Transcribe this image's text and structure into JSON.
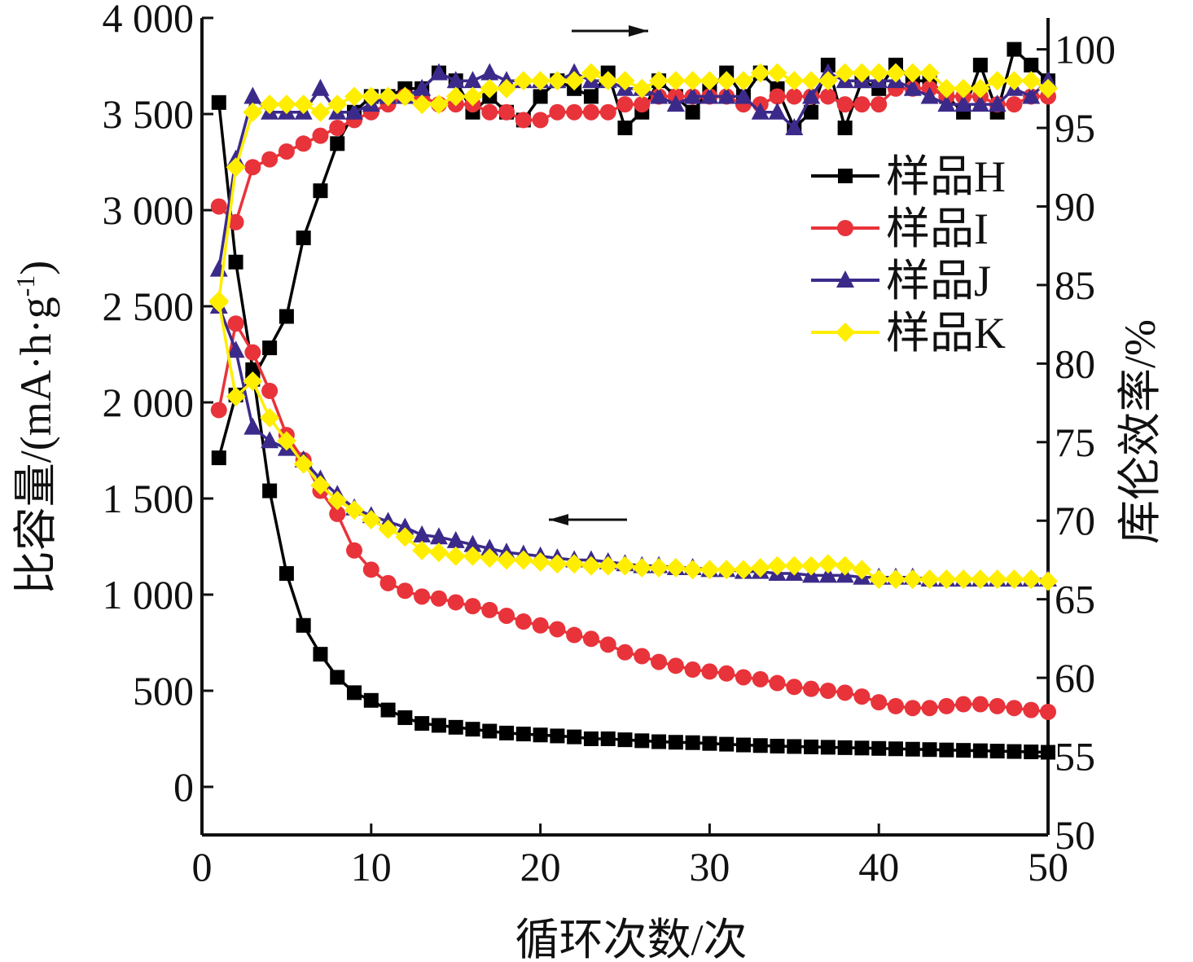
{
  "chart_data": {
    "type": "line",
    "xlabel": "循环次数/次",
    "ylabel_left": "比容量/(mA·h·g",
    "ylabel_left_sup": "-1",
    "ylabel_left_close": ")",
    "ylabel_right": "库伦效率/%",
    "xlim": [
      0,
      50
    ],
    "ylim_left": [
      -250,
      4000
    ],
    "ylim_right": [
      50,
      102
    ],
    "x_ticks": [
      "0",
      "10",
      "20",
      "30",
      "40",
      "50"
    ],
    "x_tick_values": [
      0,
      10,
      20,
      30,
      40,
      50
    ],
    "y_left_ticks": [
      "0",
      "500",
      "1 000",
      "1 500",
      "2 000",
      "2 500",
      "3 000",
      "3 500",
      "4 000"
    ],
    "y_left_tick_values": [
      0,
      500,
      1000,
      1500,
      2000,
      2500,
      3000,
      3500,
      4000
    ],
    "y_right_ticks": [
      "50",
      "55",
      "60",
      "65",
      "70",
      "75",
      "80",
      "85",
      "90",
      "95",
      "100"
    ],
    "y_right_tick_values": [
      50,
      55,
      60,
      65,
      70,
      75,
      80,
      85,
      90,
      95,
      100
    ],
    "legend_position": "upper-right",
    "annotations": [
      {
        "type": "arrow",
        "direction": "right",
        "meaning": "coulombic efficiency (right axis)"
      },
      {
        "type": "arrow",
        "direction": "left",
        "meaning": "specific capacity (left axis)"
      }
    ],
    "series": [
      {
        "name": "样品H",
        "color": "#000000",
        "marker": "square",
        "x": [
          1,
          2,
          3,
          4,
          5,
          6,
          7,
          8,
          9,
          10,
          11,
          12,
          13,
          14,
          15,
          16,
          17,
          18,
          19,
          20,
          21,
          22,
          23,
          24,
          25,
          26,
          27,
          28,
          29,
          30,
          31,
          32,
          33,
          34,
          35,
          36,
          37,
          38,
          39,
          40,
          41,
          42,
          43,
          44,
          45,
          46,
          47,
          48,
          49,
          50
        ],
        "capacity": [
          3560,
          2730,
          2170,
          1540,
          1110,
          840,
          690,
          570,
          490,
          450,
          400,
          360,
          330,
          320,
          310,
          300,
          290,
          280,
          275,
          270,
          265,
          260,
          250,
          250,
          245,
          240,
          235,
          232,
          230,
          226,
          222,
          218,
          215,
          212,
          210,
          208,
          206,
          204,
          202,
          200,
          198,
          196,
          194,
          192,
          190,
          188,
          186,
          184,
          182,
          180
        ],
        "efficiency": [
          74,
          78,
          79,
          81,
          83,
          88,
          91,
          94,
          96,
          97,
          97,
          97.5,
          97.5,
          98.5,
          98,
          96,
          97,
          96,
          95.5,
          97,
          98,
          97.5,
          97,
          98.5,
          95,
          96,
          98,
          97,
          96,
          97.5,
          98.5,
          97,
          98.5,
          97.5,
          95,
          96,
          99,
          95,
          98,
          97.5,
          99,
          98,
          98,
          97,
          96,
          99,
          96,
          100,
          99,
          98
        ]
      },
      {
        "name": "样品I",
        "color": "#e8333a",
        "marker": "circle",
        "x": [
          1,
          2,
          3,
          4,
          5,
          6,
          7,
          8,
          9,
          10,
          11,
          12,
          13,
          14,
          15,
          16,
          17,
          18,
          19,
          20,
          21,
          22,
          23,
          24,
          25,
          26,
          27,
          28,
          29,
          30,
          31,
          32,
          33,
          34,
          35,
          36,
          37,
          38,
          39,
          40,
          41,
          42,
          43,
          44,
          45,
          46,
          47,
          48,
          49,
          50
        ],
        "capacity": [
          1960,
          2410,
          2260,
          2060,
          1830,
          1700,
          1540,
          1420,
          1230,
          1130,
          1060,
          1020,
          990,
          980,
          960,
          940,
          920,
          890,
          860,
          840,
          820,
          790,
          770,
          740,
          700,
          680,
          650,
          630,
          610,
          600,
          590,
          570,
          560,
          540,
          520,
          510,
          500,
          490,
          470,
          440,
          420,
          410,
          410,
          420,
          430,
          430,
          420,
          410,
          400,
          390
        ],
        "efficiency": [
          90,
          89,
          92.5,
          93,
          93.5,
          94,
          94.5,
          95,
          95.5,
          96,
          96.5,
          97,
          97,
          96.5,
          96.5,
          96.5,
          96,
          96,
          95.5,
          95.5,
          96,
          96,
          96,
          96,
          96.5,
          96.5,
          97,
          97,
          97,
          97,
          97,
          96.5,
          96.5,
          97,
          97,
          97,
          97,
          96.5,
          96.5,
          96.5,
          97.5,
          97.5,
          97.5,
          97,
          97,
          97,
          96.5,
          96.5,
          97,
          97
        ]
      },
      {
        "name": "样品J",
        "color": "#3c2a8a",
        "marker": "triangle",
        "x": [
          1,
          2,
          3,
          4,
          5,
          6,
          7,
          8,
          9,
          10,
          11,
          12,
          13,
          14,
          15,
          16,
          17,
          18,
          19,
          20,
          21,
          22,
          23,
          24,
          25,
          26,
          27,
          28,
          29,
          30,
          31,
          32,
          33,
          34,
          35,
          36,
          37,
          38,
          39,
          40,
          41,
          42,
          43,
          44,
          45,
          46,
          47,
          48,
          49,
          50
        ],
        "capacity": [
          2500,
          2270,
          1870,
          1800,
          1760,
          1700,
          1600,
          1520,
          1450,
          1410,
          1380,
          1350,
          1310,
          1300,
          1280,
          1260,
          1240,
          1220,
          1210,
          1200,
          1190,
          1180,
          1180,
          1170,
          1160,
          1150,
          1150,
          1140,
          1140,
          1130,
          1130,
          1120,
          1120,
          1110,
          1110,
          1100,
          1100,
          1100,
          1090,
          1090,
          1090,
          1090,
          1080,
          1080,
          1080,
          1080,
          1080,
          1080,
          1080,
          1080
        ],
        "efficiency": [
          86,
          93,
          97,
          96,
          96,
          96,
          97.5,
          96,
          96,
          96.5,
          97,
          97,
          97.5,
          98.5,
          98,
          98,
          98.5,
          98,
          98,
          98,
          98,
          98.5,
          98,
          98,
          97.5,
          97.5,
          97,
          96.5,
          97,
          97,
          97,
          97,
          96,
          96,
          95,
          97,
          98.5,
          98,
          98,
          98,
          98,
          97.5,
          97,
          96.5,
          96.5,
          96.5,
          96.5,
          97.5,
          97,
          98
        ]
      },
      {
        "name": "样品K",
        "color": "#ffee00",
        "marker": "diamond",
        "x": [
          1,
          2,
          3,
          4,
          5,
          6,
          7,
          8,
          9,
          10,
          11,
          12,
          13,
          14,
          15,
          16,
          17,
          18,
          19,
          20,
          21,
          22,
          23,
          24,
          25,
          26,
          27,
          28,
          29,
          30,
          31,
          32,
          33,
          34,
          35,
          36,
          37,
          38,
          39,
          40,
          41,
          42,
          43,
          44,
          45,
          46,
          47,
          48,
          49,
          50
        ],
        "capacity": [
          2520,
          2030,
          2110,
          1920,
          1800,
          1680,
          1570,
          1490,
          1440,
          1390,
          1340,
          1300,
          1230,
          1220,
          1200,
          1200,
          1190,
          1180,
          1180,
          1170,
          1160,
          1160,
          1150,
          1150,
          1150,
          1140,
          1140,
          1140,
          1130,
          1130,
          1130,
          1130,
          1140,
          1150,
          1150,
          1150,
          1160,
          1150,
          1130,
          1080,
          1080,
          1080,
          1080,
          1080,
          1080,
          1080,
          1080,
          1080,
          1080,
          1070
        ],
        "efficiency": [
          84,
          92.5,
          96,
          96.5,
          96.5,
          96.5,
          96,
          96.5,
          97,
          97,
          97,
          97,
          96.5,
          96.5,
          97,
          97,
          97.5,
          97.5,
          98,
          98,
          98,
          98,
          98.5,
          98,
          98,
          97.5,
          98,
          98,
          98,
          98,
          98,
          98,
          98.5,
          98.5,
          98,
          98,
          98,
          98.5,
          98.5,
          98.5,
          98.5,
          98.5,
          98.5,
          97.5,
          97.5,
          97.5,
          98,
          98,
          98,
          97.5
        ]
      }
    ]
  }
}
